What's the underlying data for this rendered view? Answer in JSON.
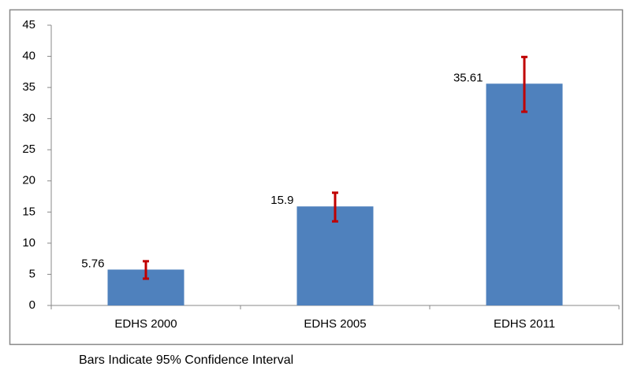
{
  "chart_data": {
    "type": "bar",
    "categories": [
      "EDHS 2000",
      "EDHS 2005",
      "EDHS 2011"
    ],
    "values": [
      5.76,
      15.9,
      35.61
    ],
    "ci_low": [
      4.3,
      13.5,
      31.1
    ],
    "ci_high": [
      7.1,
      18.1,
      39.9
    ],
    "color": "#4f81bd",
    "error_color": "#c00000",
    "ylim": [
      0,
      45
    ],
    "yticks": [
      0,
      5,
      10,
      15,
      20,
      25,
      30,
      35,
      40,
      45
    ],
    "grid": false,
    "caption": "Bars Indicate 95% Confidence Interval"
  }
}
